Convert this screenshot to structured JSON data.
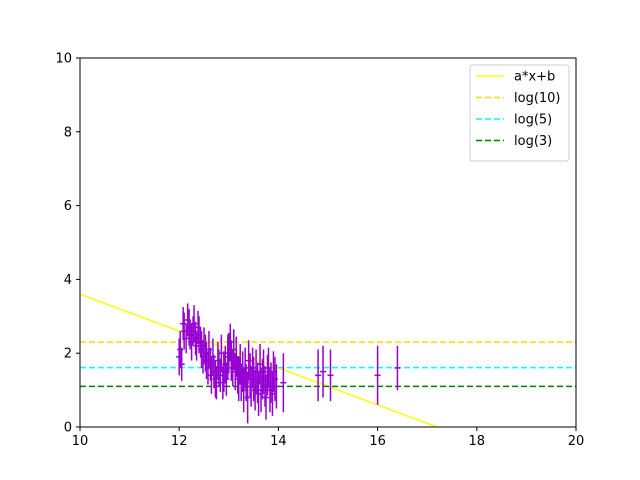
{
  "chart_data": {
    "type": "scatter",
    "title": "",
    "xlabel": "",
    "ylabel": "",
    "xlim": [
      10,
      20
    ],
    "ylim": [
      0,
      10
    ],
    "xticks": [
      "10",
      "12",
      "14",
      "16",
      "18",
      "20"
    ],
    "yticks": [
      "0",
      "2",
      "4",
      "6",
      "8",
      "10"
    ],
    "grid": false,
    "legend_position": "top-right",
    "series": [
      {
        "name": "a*x+b",
        "kind": "line",
        "color": "#ffff00",
        "dash": "solid",
        "x": [
          10,
          17.2
        ],
        "y": [
          3.6,
          0
        ]
      },
      {
        "name": "log(10)",
        "kind": "hline",
        "color": "#ffd700",
        "dash": "dashed",
        "y": 2.3
      },
      {
        "name": "log(5)",
        "kind": "hline",
        "color": "#00ffff",
        "dash": "dashed",
        "y": 1.61
      },
      {
        "name": "log(3)",
        "kind": "hline",
        "color": "#008000",
        "dash": "dashed",
        "y": 1.1
      }
    ],
    "points": {
      "color": "#9400d3",
      "x": [
        12.0,
        12.02,
        12.05,
        12.08,
        12.1,
        12.14,
        12.17,
        12.2,
        12.22,
        12.25,
        12.28,
        12.3,
        12.33,
        12.35,
        12.38,
        12.4,
        12.43,
        12.45,
        12.48,
        12.5,
        12.53,
        12.55,
        12.58,
        12.6,
        12.63,
        12.65,
        12.68,
        12.7,
        12.73,
        12.75,
        12.78,
        12.8,
        12.83,
        12.85,
        12.88,
        12.9,
        12.93,
        12.95,
        12.98,
        13.0,
        13.03,
        13.05,
        13.08,
        13.1,
        13.13,
        13.15,
        13.18,
        13.2,
        13.23,
        13.25,
        13.28,
        13.3,
        13.33,
        13.35,
        13.38,
        13.4,
        13.43,
        13.45,
        13.48,
        13.5,
        13.53,
        13.55,
        13.58,
        13.6,
        13.63,
        13.65,
        13.68,
        13.7,
        13.73,
        13.75,
        13.78,
        13.8,
        13.83,
        13.85,
        13.88,
        13.9,
        13.93,
        13.96,
        14.1,
        14.8,
        14.9,
        15.05,
        16.0,
        16.4
      ],
      "y": [
        1.9,
        2.1,
        1.7,
        2.8,
        2.6,
        2.4,
        2.9,
        2.7,
        2.5,
        2.3,
        2.6,
        2.8,
        2.4,
        2.2,
        2.7,
        2.5,
        2.3,
        2.1,
        1.9,
        2.2,
        2.0,
        1.8,
        1.6,
        2.1,
        1.7,
        1.4,
        1.9,
        1.5,
        1.3,
        1.2,
        1.8,
        1.6,
        1.4,
        2.0,
        1.2,
        1.5,
        1.7,
        1.3,
        1.9,
        2.0,
        2.3,
        1.8,
        1.6,
        2.1,
        1.5,
        1.9,
        1.4,
        1.3,
        1.7,
        1.2,
        1.5,
        1.0,
        1.6,
        1.2,
        0.8,
        1.8,
        1.4,
        1.1,
        1.6,
        1.3,
        1.0,
        1.5,
        1.2,
        0.9,
        1.7,
        1.0,
        1.3,
        1.5,
        1.1,
        0.8,
        1.4,
        1.6,
        1.0,
        1.2,
        0.9,
        1.5,
        1.3,
        1.1,
        1.2,
        1.4,
        1.5,
        1.4,
        1.4,
        1.6
      ],
      "yerr": [
        0.5,
        0.5,
        0.45,
        0.45,
        0.5,
        0.4,
        0.45,
        0.5,
        0.4,
        0.5,
        0.4,
        0.5,
        0.45,
        0.4,
        0.45,
        0.5,
        0.4,
        0.5,
        0.45,
        0.5,
        0.5,
        0.5,
        0.45,
        0.5,
        0.45,
        0.5,
        0.5,
        0.45,
        0.5,
        0.45,
        0.5,
        0.5,
        0.45,
        0.5,
        0.45,
        0.55,
        0.5,
        0.45,
        0.6,
        0.55,
        0.5,
        0.55,
        0.5,
        0.55,
        0.5,
        0.55,
        0.5,
        0.6,
        0.55,
        0.5,
        0.55,
        0.6,
        0.55,
        0.5,
        0.7,
        0.55,
        0.6,
        0.55,
        0.55,
        0.6,
        0.55,
        0.6,
        0.55,
        0.6,
        0.55,
        0.6,
        0.55,
        0.6,
        0.55,
        0.6,
        0.55,
        0.55,
        0.6,
        0.55,
        0.6,
        0.55,
        0.6,
        0.6,
        0.8,
        0.7,
        0.7,
        0.7,
        0.8,
        0.6
      ]
    }
  }
}
